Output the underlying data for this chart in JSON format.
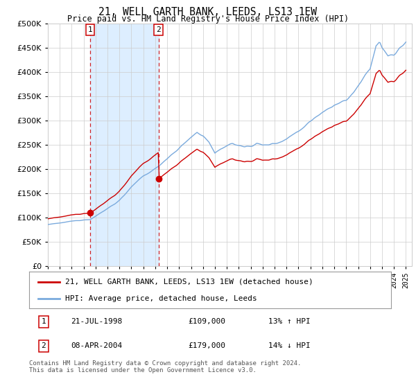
{
  "title": "21, WELL GARTH BANK, LEEDS, LS13 1EW",
  "subtitle": "Price paid vs. HM Land Registry's House Price Index (HPI)",
  "ytick_values": [
    0,
    50000,
    100000,
    150000,
    200000,
    250000,
    300000,
    350000,
    400000,
    450000,
    500000
  ],
  "ylim": [
    0,
    500000
  ],
  "sale1_date_label": "21-JUL-1998",
  "sale1_price": 109000,
  "sale1_price_label": "£109,000",
  "sale1_hpi_label": "13% ↑ HPI",
  "sale1_year": 1998.55,
  "sale2_date_label": "08-APR-2004",
  "sale2_price": 179000,
  "sale2_price_label": "£179,000",
  "sale2_hpi_label": "14% ↓ HPI",
  "sale2_year": 2004.27,
  "shade_x1": 1998.55,
  "shade_x2": 2004.27,
  "hpi_color": "#7aaadd",
  "price_color": "#cc0000",
  "shade_color": "#ddeeff",
  "grid_color": "#cccccc",
  "background_color": "#ffffff",
  "legend_label_price": "21, WELL GARTH BANK, LEEDS, LS13 1EW (detached house)",
  "legend_label_hpi": "HPI: Average price, detached house, Leeds",
  "footer_text": "Contains HM Land Registry data © Crown copyright and database right 2024.\nThis data is licensed under the Open Government Licence v3.0.",
  "xlim_start": 1995.0,
  "xlim_end": 2025.5
}
